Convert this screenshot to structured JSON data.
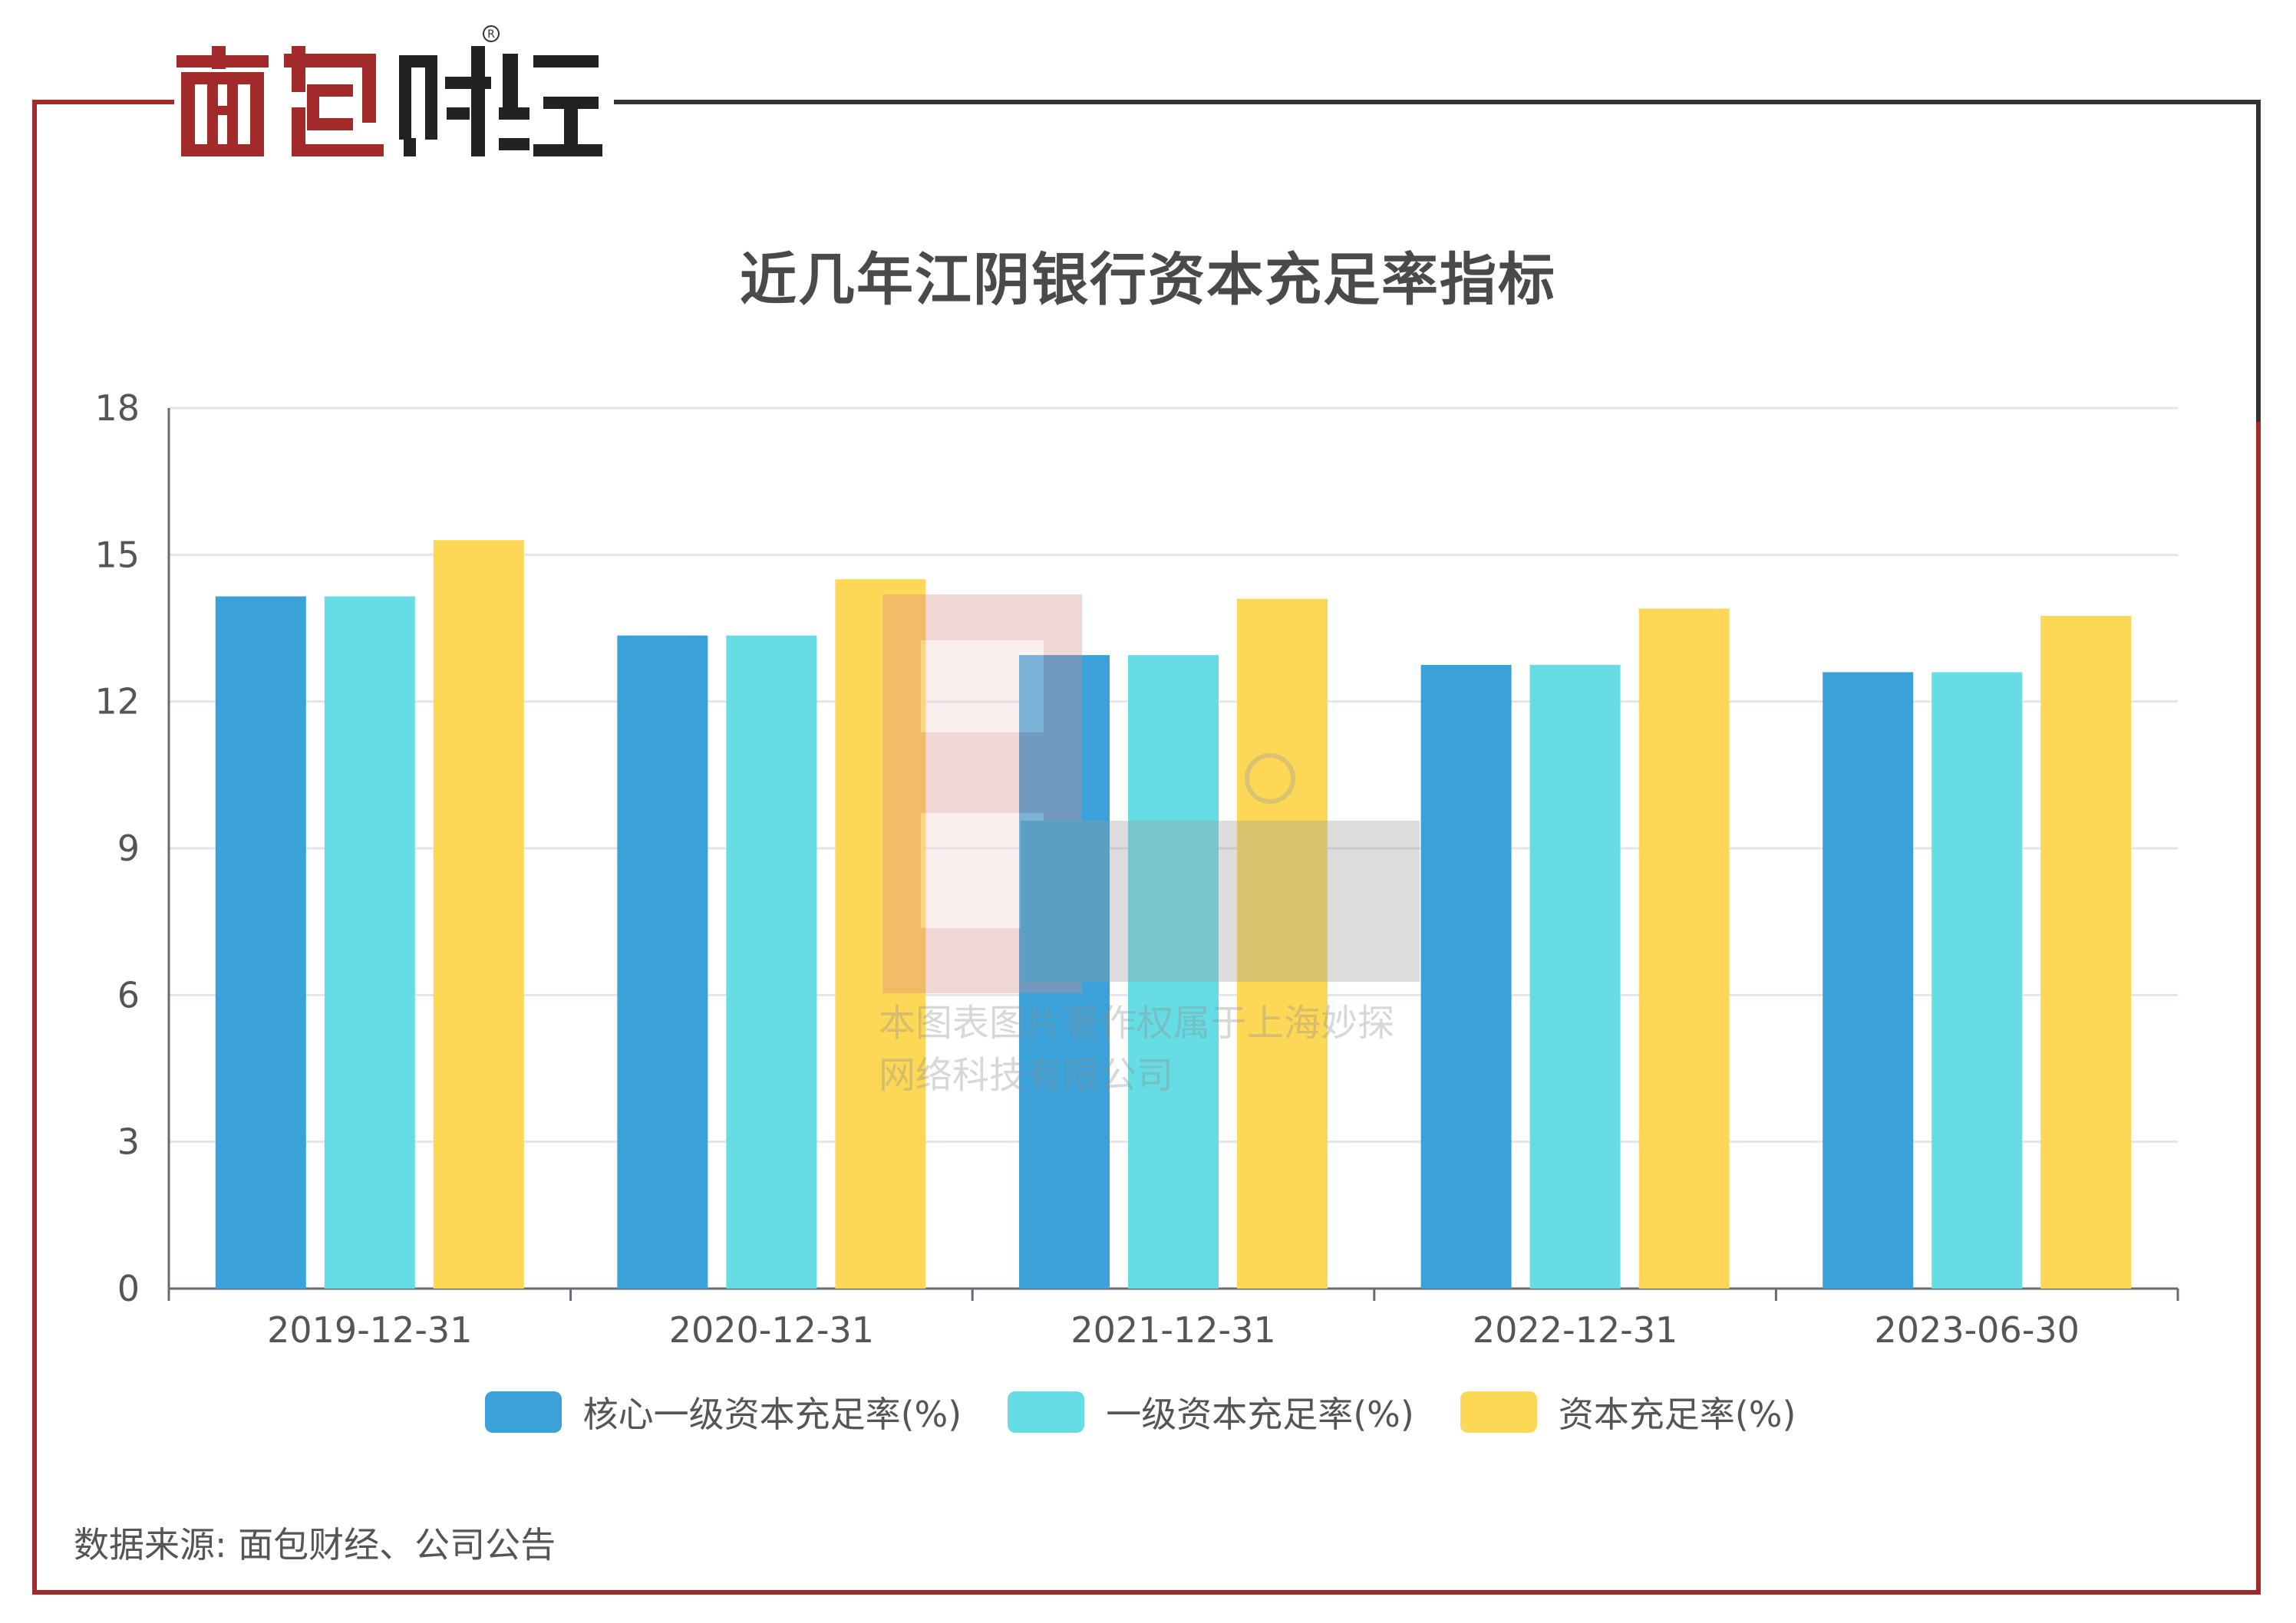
{
  "logo": {
    "text": "面包财经"
  },
  "title": "近几年江阴银行资本充足率指标",
  "source": "数据来源: 面包财经、公司公告",
  "watermark": {
    "line1": "本图表图片著作权属于上海妙探",
    "line2": "网络科技有限公司"
  },
  "colors": {
    "frame": "#a32a2a",
    "series1": "#3aa1d9",
    "series2": "#66dde4",
    "series3": "#fdd756"
  },
  "chart_data": {
    "type": "bar",
    "categories": [
      "2019-12-31",
      "2020-12-31",
      "2021-12-31",
      "2022-12-31",
      "2023-06-30"
    ],
    "series": [
      {
        "name": "核心一级资本充足率(%)",
        "color": "#3aa1d9",
        "values": [
          14.15,
          13.35,
          12.95,
          12.75,
          12.6
        ]
      },
      {
        "name": "一级资本充足率(%)",
        "color": "#66dde4",
        "values": [
          14.15,
          13.35,
          12.95,
          12.75,
          12.6
        ]
      },
      {
        "name": "资本充足率(%)",
        "color": "#fdd756",
        "values": [
          15.3,
          14.5,
          14.1,
          13.9,
          13.75
        ]
      }
    ],
    "ylim": [
      0,
      18
    ],
    "yticks": [
      0,
      3,
      6,
      9,
      12,
      15,
      18
    ],
    "grid": true,
    "legend_position": "bottom"
  }
}
